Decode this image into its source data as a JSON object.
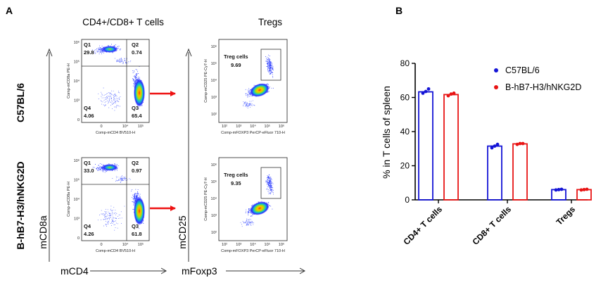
{
  "panels": {
    "a": "A",
    "b": "B"
  },
  "flow": {
    "col_headers": [
      "CD4+/CD8+ T cells",
      "Tregs"
    ],
    "row_labels": [
      "C57BL/6",
      "B-hB7-H3/hNKG2D"
    ],
    "left_axis": {
      "y": "mCD8a",
      "x": "mCD4"
    },
    "right_axis": {
      "y": "mCD25",
      "x": "mFoxp3"
    },
    "cd_plot": {
      "ylabel": "Comp-mCD8a PE-H",
      "xlabel": "Comp-mCD4 BV510-H",
      "yticks": [
        "10⁶",
        "10⁵",
        "10⁴",
        "10³",
        "0"
      ],
      "xticks": [
        "0",
        "10⁴",
        "10⁵"
      ],
      "quadrants": [
        "Q1",
        "Q2",
        "Q3",
        "Q4"
      ]
    },
    "treg_plot": {
      "ylabel": "Comp-mCD25 PE-Cy7-H",
      "xlabel": "Comp-mFOXP3 PerCP-eFluor 710-H",
      "yticks": [
        "10⁶",
        "10⁵",
        "10⁴",
        "10³",
        "10²"
      ],
      "xticks": [
        "10²",
        "10³",
        "10⁴",
        "10⁵",
        "10⁶"
      ],
      "gate_label": "Treg cells"
    },
    "rows": [
      {
        "q1": "29.8",
        "q2": "0.74",
        "q3": "65.4",
        "q4": "4.06",
        "treg": "9.69"
      },
      {
        "q1": "33.0",
        "q2": "0.97",
        "q3": "61.8",
        "q4": "4.26",
        "treg": "9.35"
      }
    ]
  },
  "chart_data": {
    "type": "bar",
    "categories": [
      "CD4+ T cells",
      "CD8+ T cells",
      "Tregs"
    ],
    "series": [
      {
        "name": "C57BL/6",
        "color": "#1414d6",
        "values": [
          63.3,
          31.5,
          6.0
        ],
        "points": [
          [
            62.5,
            63.5,
            65.0
          ],
          [
            30.5,
            31.5,
            32.5
          ],
          [
            5.8,
            6.0,
            6.2
          ]
        ]
      },
      {
        "name": "B-hB7-H3/hNKG2D",
        "color": "#e81414",
        "values": [
          61.7,
          32.8,
          6.0
        ],
        "points": [
          [
            61.0,
            62.0,
            62.5
          ],
          [
            32.5,
            33.0,
            33.0
          ],
          [
            5.8,
            6.0,
            6.2
          ]
        ]
      }
    ],
    "ylabel": "% in T cells of spleen",
    "ylim": [
      0,
      80
    ],
    "yticks": [
      0,
      20,
      40,
      60,
      80
    ],
    "legend": "top-right"
  }
}
